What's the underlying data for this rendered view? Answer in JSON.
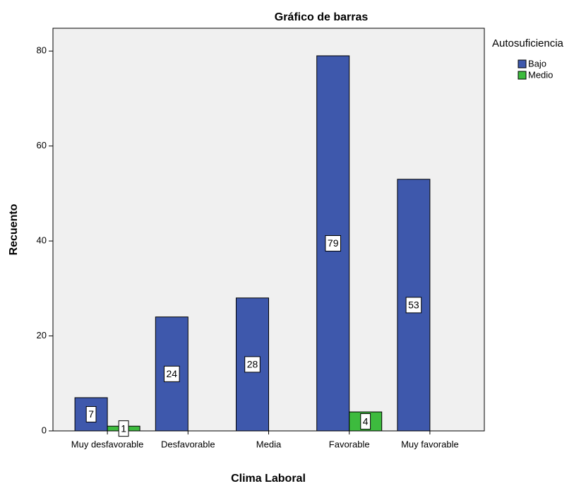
{
  "chart_data": {
    "type": "bar",
    "title": "Gráfico de barras",
    "x_label": "Clima Laboral",
    "y_label": "Recuento",
    "legend_title": "Autosuficiencia",
    "legend_position": "right",
    "categories": [
      "Muy desfavorable",
      "Desfavorable",
      "Media",
      "Favorable",
      "Muy favorable"
    ],
    "series": [
      {
        "name": "Bajo",
        "color": "#3e58ac",
        "values": [
          7,
          24,
          28,
          79,
          53
        ]
      },
      {
        "name": "Medio",
        "color": "#3dbb3e",
        "values": [
          1,
          null,
          null,
          4,
          null
        ]
      }
    ],
    "ylim": [
      0,
      84.8
    ],
    "yticks": [
      0,
      20,
      40,
      60,
      80
    ],
    "grid": false
  }
}
